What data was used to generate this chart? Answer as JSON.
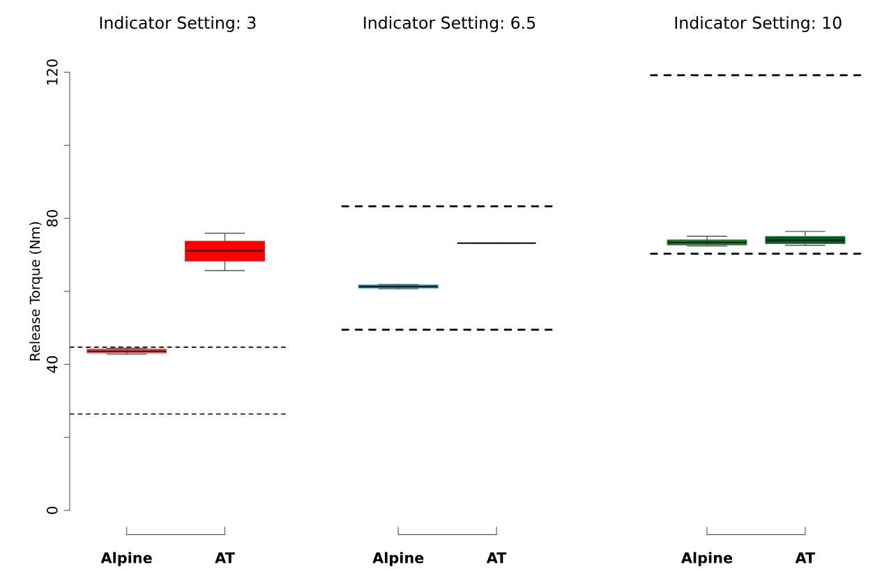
{
  "chart_data": [
    {
      "type": "box",
      "title": "Indicator Setting: 3",
      "ylabel": "Release Torque (Nm)",
      "categories": [
        "Alpine",
        "AT"
      ],
      "colors": [
        "#f05050",
        "#ff0000"
      ],
      "boxes": [
        {
          "low": 42.8,
          "q1": 43.2,
          "median": 43.6,
          "q3": 44.1,
          "high": 44.4
        },
        {
          "low": 65.7,
          "q1": 68.4,
          "median": 71.1,
          "q3": 73.6,
          "high": 75.9
        }
      ],
      "ylim": [
        0,
        120
      ],
      "yticks": [
        0,
        {
          "value": 20,
          "label": null
        },
        40,
        {
          "value": 60,
          "label": null
        },
        80,
        {
          "value": 100,
          "label": null
        },
        120
      ],
      "ref_lines": [
        {
          "axis": "y",
          "value": 44.7,
          "color": "#000000",
          "line_style": "dashed"
        },
        {
          "axis": "y",
          "value": 26.4,
          "color": "#000000",
          "line_style": "dashed"
        }
      ]
    },
    {
      "type": "box",
      "title": "Indicator Setting: 6.5",
      "categories": [
        "Alpine",
        "AT"
      ],
      "colors": [
        "#1a7f9a",
        "#19b8d8"
      ],
      "boxes": [
        {
          "low": 60.7,
          "q1": 61.0,
          "median": 61.3,
          "q3": 61.6,
          "high": 61.9
        },
        {
          "low": 73.2,
          "q1": 73.2,
          "median": 73.2,
          "q3": 73.2,
          "high": 73.2
        }
      ],
      "ylim": [
        0,
        120
      ],
      "tick_labels": "x",
      "ref_lines": [
        {
          "axis": "y",
          "value": 83.3,
          "color": "#000000",
          "line_style": "dashed"
        },
        {
          "axis": "y",
          "value": 49.5,
          "color": "#000000",
          "line_style": "dashed"
        }
      ]
    },
    {
      "type": "box",
      "title": "Indicator Setting: 10",
      "categories": [
        "Alpine",
        "AT"
      ],
      "colors": [
        "#1f7a2a",
        "#006020"
      ],
      "boxes": [
        {
          "low": 72.4,
          "q1": 72.8,
          "median": 73.4,
          "q3": 74.0,
          "high": 75.1
        },
        {
          "low": 72.6,
          "q1": 73.2,
          "median": 74.0,
          "q3": 74.9,
          "high": 76.4
        }
      ],
      "ylim": [
        0,
        120
      ],
      "tick_labels": "x",
      "ref_lines": [
        {
          "axis": "y",
          "value": 119.2,
          "color": "#000000",
          "line_style": "dashed"
        },
        {
          "axis": "y",
          "value": 70.3,
          "color": "#000000",
          "line_style": "dashed"
        }
      ]
    }
  ]
}
